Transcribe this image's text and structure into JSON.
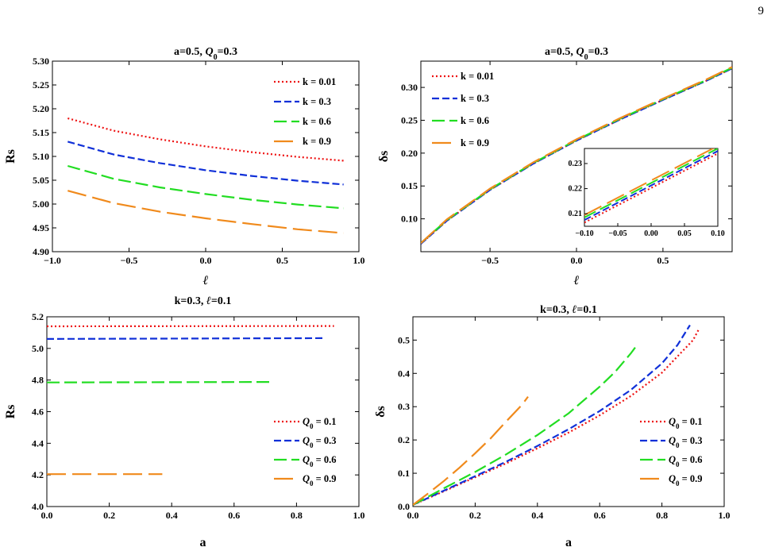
{
  "page_number": "9",
  "colors": {
    "k001": "#ee1111",
    "k03": "#1030d8",
    "k06": "#22dd22",
    "k09": "#f08a1c"
  },
  "chart_data": [
    {
      "id": "tl",
      "type": "line",
      "title_parts": [
        "a=0.5, ",
        "Q",
        "0",
        "=0.3"
      ],
      "xlabel": "ℓ",
      "ylabel": "Rs",
      "xlim": [
        -1.0,
        1.0
      ],
      "ylim": [
        4.9,
        5.3
      ],
      "xticks": [
        "−1.0",
        "−0.5",
        "0.0",
        "0.5",
        "1.0"
      ],
      "xtick_values": [
        -1.0,
        -0.5,
        0.0,
        0.5,
        1.0
      ],
      "yticks": [
        "4.90",
        "4.95",
        "5.00",
        "5.05",
        "5.10",
        "5.15",
        "5.20",
        "5.25",
        "5.30"
      ],
      "ytick_values": [
        4.9,
        4.95,
        5.0,
        5.05,
        5.1,
        5.15,
        5.2,
        5.25,
        5.3
      ],
      "legend": "top-right",
      "series": [
        {
          "name": "k = 0.01",
          "color": "#ee1111",
          "dash": "dot",
          "x": [
            -0.9,
            -0.6,
            -0.3,
            0.0,
            0.3,
            0.6,
            0.9
          ],
          "y": [
            5.18,
            5.154,
            5.136,
            5.121,
            5.109,
            5.099,
            5.091
          ]
        },
        {
          "name": "k = 0.3",
          "color": "#1030d8",
          "dash": "dash",
          "x": [
            -0.9,
            -0.6,
            -0.3,
            0.0,
            0.3,
            0.6,
            0.9
          ],
          "y": [
            5.131,
            5.104,
            5.086,
            5.071,
            5.059,
            5.049,
            5.041
          ]
        },
        {
          "name": "k = 0.6",
          "color": "#22dd22",
          "dash": "longdash",
          "x": [
            -0.9,
            -0.6,
            -0.3,
            0.0,
            0.3,
            0.6,
            0.9
          ],
          "y": [
            5.08,
            5.053,
            5.035,
            5.021,
            5.009,
            4.999,
            4.991
          ]
        },
        {
          "name": "k = 0.9",
          "color": "#f08a1c",
          "dash": "longerdash",
          "x": [
            -0.9,
            -0.6,
            -0.3,
            0.0,
            0.3,
            0.6,
            0.9
          ],
          "y": [
            5.028,
            5.002,
            4.984,
            4.97,
            4.958,
            4.947,
            4.939
          ]
        }
      ]
    },
    {
      "id": "tr",
      "type": "line",
      "title_parts": [
        "a=0.5, ",
        "Q",
        "0",
        "=0.3"
      ],
      "xlabel": "ℓ",
      "ylabel": "δs",
      "xlim": [
        -0.9,
        0.9
      ],
      "ylim": [
        0.05,
        0.34
      ],
      "xticks": [
        "−0.5",
        "0.0",
        "0.5"
      ],
      "xtick_values": [
        -0.5,
        0.0,
        0.5
      ],
      "yticks": [
        "0.10",
        "0.15",
        "0.20",
        "0.25",
        "0.30"
      ],
      "ytick_values": [
        0.1,
        0.15,
        0.2,
        0.25,
        0.3
      ],
      "legend": "top-left",
      "series": [
        {
          "name": "k = 0.01",
          "color": "#ee1111",
          "dash": "dot",
          "x": [
            -0.9,
            -0.75,
            -0.5,
            -0.25,
            0.0,
            0.25,
            0.5,
            0.75,
            0.9
          ],
          "y": [
            0.062,
            0.097,
            0.144,
            0.184,
            0.219,
            0.251,
            0.281,
            0.31,
            0.329
          ]
        },
        {
          "name": "k = 0.3",
          "color": "#1030d8",
          "dash": "dash",
          "x": [
            -0.9,
            -0.75,
            -0.5,
            -0.25,
            0.0,
            0.25,
            0.5,
            0.75,
            0.9
          ],
          "y": [
            0.062,
            0.097,
            0.144,
            0.184,
            0.219,
            0.251,
            0.281,
            0.31,
            0.329
          ]
        },
        {
          "name": "k = 0.6",
          "color": "#22dd22",
          "dash": "longdash",
          "x": [
            -0.9,
            -0.75,
            -0.5,
            -0.25,
            0.0,
            0.25,
            0.5,
            0.75,
            0.9
          ],
          "y": [
            0.063,
            0.098,
            0.145,
            0.185,
            0.22,
            0.252,
            0.282,
            0.311,
            0.33
          ]
        },
        {
          "name": "k = 0.9",
          "color": "#f08a1c",
          "dash": "longerdash",
          "x": [
            -0.9,
            -0.75,
            -0.5,
            -0.25,
            0.0,
            0.25,
            0.5,
            0.75,
            0.9
          ],
          "y": [
            0.063,
            0.099,
            0.146,
            0.186,
            0.221,
            0.253,
            0.283,
            0.312,
            0.331
          ]
        }
      ],
      "inset": {
        "xlim": [
          -0.1,
          0.1
        ],
        "ylim": [
          0.205,
          0.236
        ],
        "xticks": [
          "−0.10",
          "−0.05",
          "0.00",
          "0.05",
          "0.10"
        ],
        "xtick_values": [
          -0.1,
          -0.05,
          0.0,
          0.05,
          0.1
        ],
        "yticks": [
          "0.21",
          "0.22",
          "0.23"
        ],
        "ytick_values": [
          0.21,
          0.22,
          0.23
        ],
        "series": [
          {
            "color": "#ee1111",
            "dash": "dot",
            "x": [
              -0.1,
              0.1
            ],
            "y": [
              0.2065,
              0.234
            ]
          },
          {
            "color": "#1030d8",
            "dash": "dash",
            "x": [
              -0.1,
              0.1
            ],
            "y": [
              0.2075,
              0.235
            ]
          },
          {
            "color": "#22dd22",
            "dash": "longdash",
            "x": [
              -0.1,
              0.1
            ],
            "y": [
              0.2085,
              0.236
            ]
          },
          {
            "color": "#f08a1c",
            "dash": "longerdash",
            "x": [
              -0.1,
              0.1
            ],
            "y": [
              0.2095,
              0.237
            ]
          }
        ]
      }
    },
    {
      "id": "bl",
      "type": "line",
      "title_parts": [
        "k=0.3, ",
        "ℓ",
        "",
        "=0.1"
      ],
      "xlabel": "a",
      "ylabel": "Rs",
      "xlim": [
        0.0,
        1.0
      ],
      "ylim": [
        4.0,
        5.2
      ],
      "xticks": [
        "0.0",
        "0.2",
        "0.4",
        "0.6",
        "0.8",
        "1.0"
      ],
      "xtick_values": [
        0.0,
        0.2,
        0.4,
        0.6,
        0.8,
        1.0
      ],
      "yticks": [
        "4.0",
        "4.2",
        "4.4",
        "4.6",
        "4.8",
        "5.0",
        "5.2"
      ],
      "ytick_values": [
        4.0,
        4.2,
        4.4,
        4.6,
        4.8,
        5.0,
        5.2
      ],
      "legend": "bottom-right",
      "series": [
        {
          "name_parts": [
            "Q",
            "0",
            " = 0.1"
          ],
          "color": "#ee1111",
          "dash": "dot",
          "x": [
            0.0,
            0.92
          ],
          "y": [
            5.14,
            5.142
          ]
        },
        {
          "name_parts": [
            "Q",
            "0",
            " = 0.3"
          ],
          "color": "#1030d8",
          "dash": "dash",
          "x": [
            0.0,
            0.89
          ],
          "y": [
            5.06,
            5.065
          ]
        },
        {
          "name_parts": [
            "Q",
            "0",
            " = 0.6"
          ],
          "color": "#22dd22",
          "dash": "longdash",
          "x": [
            0.0,
            0.72
          ],
          "y": [
            4.785,
            4.788
          ]
        },
        {
          "name_parts": [
            "Q",
            "0",
            " = 0.9"
          ],
          "color": "#f08a1c",
          "dash": "longerdash",
          "x": [
            0.0,
            0.37
          ],
          "y": [
            4.205,
            4.205
          ]
        }
      ]
    },
    {
      "id": "br",
      "type": "line",
      "title_parts": [
        "k=0.3, ",
        "ℓ",
        "",
        "=0.1"
      ],
      "xlabel": "a",
      "ylabel": "δs",
      "xlim": [
        0.0,
        1.0
      ],
      "ylim": [
        0.0,
        0.57
      ],
      "xticks": [
        "0.0",
        "0.2",
        "0.4",
        "0.6",
        "0.8",
        "1.0"
      ],
      "xtick_values": [
        0.0,
        0.2,
        0.4,
        0.6,
        0.8,
        1.0
      ],
      "yticks": [
        "0.0",
        "0.1",
        "0.2",
        "0.3",
        "0.4",
        "0.5"
      ],
      "ytick_values": [
        0.0,
        0.1,
        0.2,
        0.3,
        0.4,
        0.5
      ],
      "legend": "bottom-right",
      "series": [
        {
          "name_parts": [
            "Q",
            "0",
            " = 0.1"
          ],
          "color": "#ee1111",
          "dash": "dot",
          "x": [
            0.0,
            0.1,
            0.2,
            0.3,
            0.4,
            0.5,
            0.6,
            0.7,
            0.8,
            0.9,
            0.92
          ],
          "y": [
            0.005,
            0.046,
            0.088,
            0.13,
            0.175,
            0.222,
            0.274,
            0.332,
            0.402,
            0.5,
            0.535
          ]
        },
        {
          "name_parts": [
            "Q",
            "0",
            " = 0.3"
          ],
          "color": "#1030d8",
          "dash": "dash",
          "x": [
            0.0,
            0.1,
            0.2,
            0.3,
            0.4,
            0.5,
            0.6,
            0.7,
            0.8,
            0.85,
            0.89
          ],
          "y": [
            0.005,
            0.048,
            0.091,
            0.135,
            0.182,
            0.232,
            0.287,
            0.35,
            0.43,
            0.485,
            0.545
          ]
        },
        {
          "name_parts": [
            "Q",
            "0",
            " = 0.6"
          ],
          "color": "#22dd22",
          "dash": "longdash",
          "x": [
            0.0,
            0.1,
            0.2,
            0.3,
            0.4,
            0.5,
            0.6,
            0.65,
            0.7,
            0.72
          ],
          "y": [
            0.005,
            0.055,
            0.104,
            0.157,
            0.215,
            0.28,
            0.36,
            0.405,
            0.46,
            0.485
          ]
        },
        {
          "name_parts": [
            "Q",
            "0",
            " = 0.9"
          ],
          "color": "#f08a1c",
          "dash": "longerdash",
          "x": [
            0.0,
            0.05,
            0.1,
            0.15,
            0.2,
            0.25,
            0.3,
            0.35,
            0.37
          ],
          "y": [
            0.005,
            0.04,
            0.077,
            0.117,
            0.16,
            0.205,
            0.256,
            0.305,
            0.33
          ]
        }
      ]
    }
  ]
}
